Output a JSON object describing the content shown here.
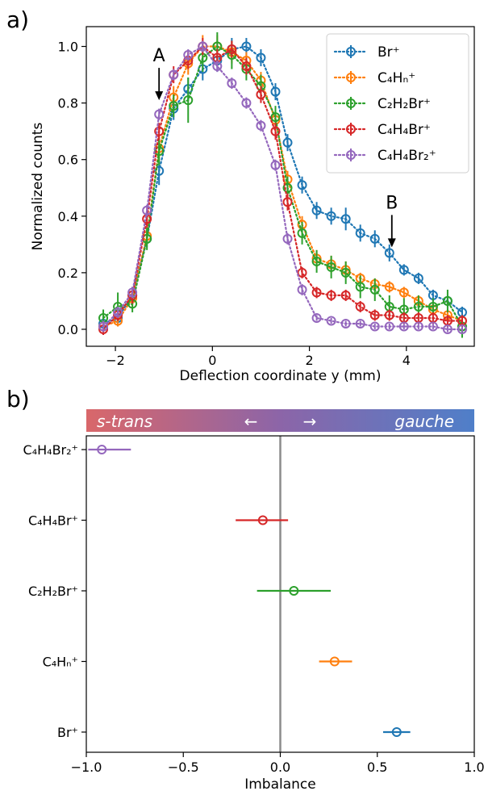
{
  "chart_data": [
    {
      "type": "scatter",
      "panel_label": "a)",
      "xlabel": "Deflection coordinate y (mm)",
      "ylabel": "Normalized counts",
      "xlim": [
        -2.6,
        5.4
      ],
      "ylim": [
        -0.06,
        1.07
      ],
      "xticks": [
        -2,
        0,
        2,
        4
      ],
      "xtick_labels": [
        "−2",
        "0",
        "2",
        "4"
      ],
      "yticks": [
        0.0,
        0.2,
        0.4,
        0.6,
        0.8,
        1.0
      ],
      "ytick_labels": [
        "0.0",
        "0.2",
        "0.4",
        "0.6",
        "0.8",
        "1.0"
      ],
      "grid": false,
      "legend_position": "top-right",
      "line_style": "dotted with circle markers and error bars",
      "annotations": [
        {
          "label": "A",
          "x": -1.1,
          "y": 0.81
        },
        {
          "label": "B",
          "x": 3.7,
          "y": 0.29
        }
      ],
      "x": [
        -2.25,
        -1.95,
        -1.65,
        -1.35,
        -1.1,
        -0.8,
        -0.5,
        -0.2,
        0.1,
        0.4,
        0.7,
        1.0,
        1.3,
        1.55,
        1.85,
        2.15,
        2.45,
        2.75,
        3.05,
        3.35,
        3.65,
        3.95,
        4.25,
        4.55,
        4.85,
        5.15
      ],
      "series": [
        {
          "name": "Br⁺",
          "color": "#1f77b4",
          "values": [
            0.02,
            0.04,
            0.12,
            0.32,
            0.56,
            0.78,
            0.85,
            0.92,
            0.95,
            0.99,
            1.0,
            0.96,
            0.84,
            0.66,
            0.51,
            0.42,
            0.4,
            0.39,
            0.34,
            0.32,
            0.27,
            0.21,
            0.18,
            0.12,
            0.1,
            0.06
          ],
          "errors": [
            0.02,
            0.03,
            0.03,
            0.03,
            0.05,
            0.04,
            0.04,
            0.04,
            0.04,
            0.04,
            0.03,
            0.03,
            0.03,
            0.03,
            0.03,
            0.03,
            0.03,
            0.04,
            0.03,
            0.03,
            0.03,
            0.02,
            0.02,
            0.02,
            0.02,
            0.02
          ]
        },
        {
          "name": "C₄Hₙ⁺",
          "color": "#ff7f0e",
          "values": [
            0.01,
            0.03,
            0.11,
            0.33,
            0.64,
            0.82,
            0.94,
            1.0,
            1.0,
            0.98,
            0.95,
            0.88,
            0.74,
            0.53,
            0.37,
            0.25,
            0.23,
            0.21,
            0.18,
            0.16,
            0.15,
            0.13,
            0.1,
            0.07,
            0.05,
            0.03
          ],
          "errors": [
            0.02,
            0.02,
            0.03,
            0.03,
            0.03,
            0.04,
            0.04,
            0.04,
            0.04,
            0.04,
            0.03,
            0.03,
            0.03,
            0.03,
            0.03,
            0.03,
            0.03,
            0.03,
            0.02,
            0.02,
            0.02,
            0.02,
            0.02,
            0.02,
            0.02,
            0.02
          ]
        },
        {
          "name": "C₂H₂Br⁺",
          "color": "#2ca02c",
          "values": [
            0.04,
            0.08,
            0.09,
            0.32,
            0.63,
            0.79,
            0.81,
            0.96,
            1.0,
            0.97,
            0.92,
            0.86,
            0.75,
            0.5,
            0.34,
            0.24,
            0.22,
            0.2,
            0.15,
            0.14,
            0.08,
            0.07,
            0.08,
            0.08,
            0.1,
            0.01
          ],
          "errors": [
            0.03,
            0.05,
            0.03,
            0.04,
            0.05,
            0.04,
            0.08,
            0.05,
            0.05,
            0.05,
            0.04,
            0.04,
            0.04,
            0.04,
            0.04,
            0.04,
            0.04,
            0.04,
            0.04,
            0.04,
            0.04,
            0.04,
            0.04,
            0.03,
            0.04,
            0.04
          ]
        },
        {
          "name": "C₄H₄Br⁺",
          "color": "#d62728",
          "values": [
            0.0,
            0.05,
            0.12,
            0.39,
            0.7,
            0.9,
            0.95,
            1.0,
            0.96,
            0.99,
            0.93,
            0.83,
            0.7,
            0.45,
            0.2,
            0.13,
            0.12,
            0.12,
            0.08,
            0.05,
            0.05,
            0.04,
            0.04,
            0.04,
            0.03,
            0.03
          ],
          "errors": [
            0.02,
            0.02,
            0.03,
            0.03,
            0.03,
            0.03,
            0.03,
            0.03,
            0.03,
            0.03,
            0.03,
            0.03,
            0.03,
            0.03,
            0.02,
            0.02,
            0.02,
            0.02,
            0.02,
            0.02,
            0.02,
            0.02,
            0.02,
            0.02,
            0.02,
            0.02
          ]
        },
        {
          "name": "C₄H₄Br₂⁺",
          "color": "#9467bd",
          "values": [
            0.01,
            0.06,
            0.13,
            0.42,
            0.76,
            0.9,
            0.97,
            1.0,
            0.93,
            0.87,
            0.8,
            0.72,
            0.58,
            0.32,
            0.14,
            0.04,
            0.03,
            0.02,
            0.02,
            0.01,
            0.01,
            0.01,
            0.01,
            0.01,
            0.0,
            0.0
          ],
          "errors": [
            0.02,
            0.02,
            0.02,
            0.02,
            0.02,
            0.02,
            0.02,
            0.02,
            0.02,
            0.02,
            0.02,
            0.02,
            0.02,
            0.02,
            0.02,
            0.01,
            0.01,
            0.01,
            0.01,
            0.01,
            0.01,
            0.01,
            0.01,
            0.01,
            0.01,
            0.01
          ]
        }
      ]
    },
    {
      "type": "scatter",
      "panel_label": "b)",
      "xlabel": "Imbalance",
      "xlim": [
        -1.0,
        1.0
      ],
      "xticks": [
        -1.0,
        -0.5,
        0.0,
        0.5,
        1.0
      ],
      "xtick_labels": [
        "−1.0",
        "−0.5",
        "0.0",
        "0.5",
        "1.0"
      ],
      "grid": false,
      "reference_line_x": 0.0,
      "colorbar": {
        "left_label": "s-trans",
        "right_label": "gauche",
        "left_color": "#d9676a",
        "mid_color": "#8c65a8",
        "right_color": "#4f7fc9",
        "arrows": [
          "←",
          "→"
        ]
      },
      "categories": [
        "C₄H₄Br₂⁺",
        "C₄H₄Br⁺",
        "C₂H₂Br⁺",
        "C₄Hₙ⁺",
        "Br⁺"
      ],
      "series": [
        {
          "name": "C₄H₄Br₂⁺",
          "color": "#9467bd",
          "value": -0.92,
          "err_low": -0.99,
          "err_high": -0.77
        },
        {
          "name": "C₄H₄Br⁺",
          "color": "#d62728",
          "value": -0.09,
          "err_low": -0.23,
          "err_high": 0.04
        },
        {
          "name": "C₂H₂Br⁺",
          "color": "#2ca02c",
          "value": 0.07,
          "err_low": -0.12,
          "err_high": 0.26
        },
        {
          "name": "C₄Hₙ⁺",
          "color": "#ff7f0e",
          "value": 0.28,
          "err_low": 0.2,
          "err_high": 0.37
        },
        {
          "name": "Br⁺",
          "color": "#1f77b4",
          "value": 0.6,
          "err_low": 0.53,
          "err_high": 0.67
        }
      ]
    }
  ]
}
